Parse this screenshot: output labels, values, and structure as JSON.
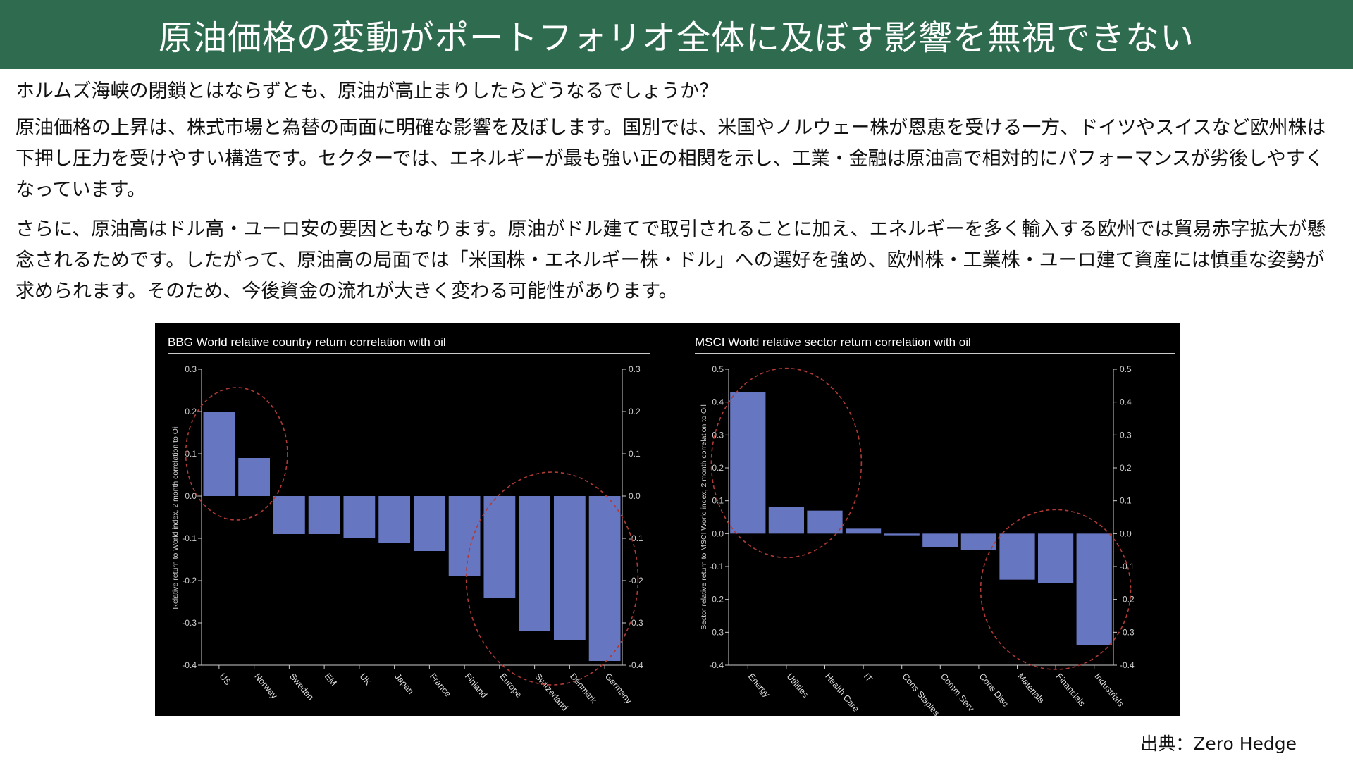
{
  "header": {
    "title": "原油価格の変動がポートフォリオ全体に及ぼす影響を無視できない"
  },
  "body": {
    "question": "ホルムズ海峡の閉鎖とはならずとも、原油が高止まりしたらどうなるでしょうか？",
    "paragraph1": "原油価格の上昇は、株式市場と為替の両面に明確な影響を及ぼします。国別では、米国やノルウェー株が恩恵を受ける一方、ドイツやスイスなど欧州株は下押し圧力を受けやすい構造です。セクターでは、エネルギーが最も強い正の相関を示し、工業・金融は原油高で相対的にパフォーマンスが劣後しやすくなっています。",
    "paragraph2": "さらに、原油高はドル高・ユーロ安の要因ともなります。原油がドル建てで取引されることに加え、エネルギーを多く輸入する欧州では貿易赤字拡大が懸念されるためです。したがって、原油高の局面では「米国株・エネルギー株・ドル」への選好を強め、欧州株・工業株・ユーロ建て資産には慎重な姿勢が求められます。そのため、今後資金の流れが大きく変わる可能性があります。"
  },
  "source": {
    "label": "出典：Zero Hedge"
  },
  "colors": {
    "header_bg": "#2f6b4f",
    "bar": "#6776c1",
    "panel_bg": "#000000",
    "circle": "#b03a36"
  },
  "chart_data": [
    {
      "type": "bar",
      "title": "BBG World relative country return correlation with oil",
      "ylabel": "Relative return to World index, 2 month correlation to Oil",
      "categories": [
        "US",
        "Norway",
        "Sweden",
        "EM",
        "UK",
        "Japan",
        "France",
        "Finland",
        "Europe",
        "Switzerland",
        "Denmark",
        "Germany"
      ],
      "values": [
        0.2,
        0.09,
        -0.09,
        -0.09,
        -0.1,
        -0.11,
        -0.13,
        -0.19,
        -0.24,
        -0.32,
        -0.34,
        -0.39
      ],
      "ylim": [
        -0.4,
        0.3
      ],
      "yticks": [
        0.3,
        0.2,
        0.1,
        0.0,
        -0.1,
        -0.2,
        -0.3,
        -0.4
      ],
      "ytick_labels": [
        "0.3",
        "0.2",
        "0.1",
        "0.0",
        "-0.1",
        "-0.2",
        "-0.3",
        "-0.4"
      ],
      "grid": false,
      "highlight_groups": [
        [
          0,
          1
        ],
        [
          8,
          11
        ]
      ]
    },
    {
      "type": "bar",
      "title": "MSCI World relative sector return correlation with oil",
      "ylabel": "Sector relative return to MSCI World index, 2 month correlation to Oil",
      "categories": [
        "Energy",
        "Utilities",
        "Health Care",
        "IT",
        "Cons Staples",
        "Comm Serv",
        "Cons Disc",
        "Materials",
        "Financials",
        "Industrials"
      ],
      "values": [
        0.43,
        0.08,
        0.07,
        0.015,
        -0.005,
        -0.04,
        -0.05,
        -0.14,
        -0.15,
        -0.34
      ],
      "ylim": [
        -0.4,
        0.5
      ],
      "yticks": [
        0.5,
        0.4,
        0.3,
        0.2,
        0.1,
        0.0,
        -0.1,
        -0.2,
        -0.3,
        -0.4
      ],
      "ytick_labels": [
        "0.5",
        "0.4",
        "0.3",
        "0.2",
        "0.1",
        "0.0",
        "-0.1",
        "-0.2",
        "-0.3",
        "-0.4"
      ],
      "grid": false,
      "highlight_groups": [
        [
          0,
          2
        ],
        [
          7,
          9
        ]
      ]
    }
  ]
}
